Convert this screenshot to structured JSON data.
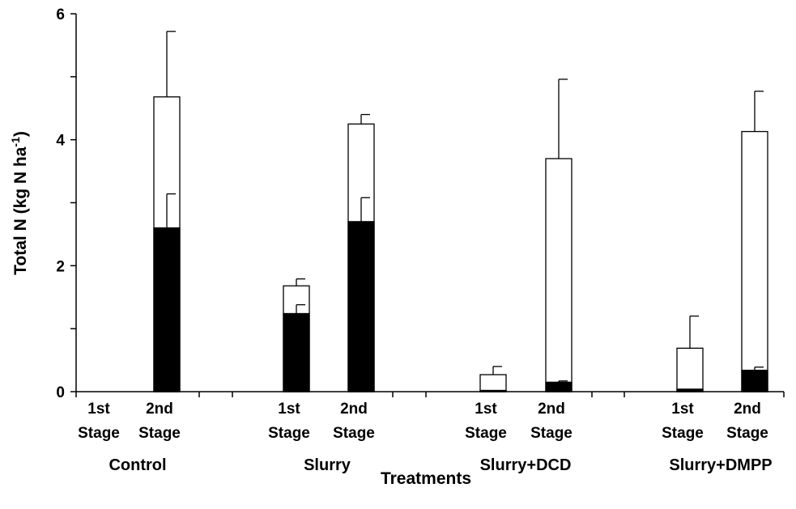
{
  "chart_data": {
    "type": "bar",
    "stacked": true,
    "xlabel": "Treatments",
    "ylabel": "Total N (kg N ha",
    "ylabel_superscript": "-1",
    "ylabel_close": ")",
    "ylim": [
      0,
      6
    ],
    "yticks": [
      {
        "value": 0,
        "label": "0"
      },
      {
        "value": 2,
        "label": "2"
      },
      {
        "value": 4,
        "label": "4"
      },
      {
        "value": 6,
        "label": "6"
      }
    ],
    "groups": [
      {
        "label": "Control",
        "bars": [
          {
            "stage_line1": "1st",
            "stage_line2": "Stage",
            "black": 0,
            "total": 0,
            "black_err": 0,
            "total_err": 0
          },
          {
            "stage_line1": "2nd",
            "stage_line2": "Stage",
            "black": 2.6,
            "total": 4.68,
            "black_err": 0.54,
            "total_err": 1.04
          }
        ]
      },
      {
        "label": "Slurry",
        "bars": [
          {
            "stage_line1": "1st",
            "stage_line2": "Stage",
            "black": 1.24,
            "total": 1.68,
            "black_err": 0.14,
            "total_err": 0.11
          },
          {
            "stage_line1": "2nd",
            "stage_line2": "Stage",
            "black": 2.7,
            "total": 4.25,
            "black_err": 0.38,
            "total_err": 0.15
          }
        ]
      },
      {
        "label": "Slurry+DCD",
        "bars": [
          {
            "stage_line1": "1st",
            "stage_line2": "Stage",
            "black": 0.02,
            "total": 0.27,
            "black_err": 0,
            "total_err": 0.13
          },
          {
            "stage_line1": "2nd",
            "stage_line2": "Stage",
            "black": 0.15,
            "total": 3.7,
            "black_err": 0.02,
            "total_err": 1.26
          }
        ]
      },
      {
        "label": "Slurry+DMPP",
        "bars": [
          {
            "stage_line1": "1st",
            "stage_line2": "Stage",
            "black": 0.04,
            "total": 0.69,
            "black_err": 0,
            "total_err": 0.51
          },
          {
            "stage_line1": "2nd",
            "stage_line2": "Stage",
            "black": 0.34,
            "total": 4.13,
            "black_err": 0.05,
            "total_err": 0.64
          }
        ]
      }
    ],
    "colors": {
      "black_segment": "#000000",
      "white_segment": "#ffffff",
      "stroke": "#000000"
    }
  }
}
